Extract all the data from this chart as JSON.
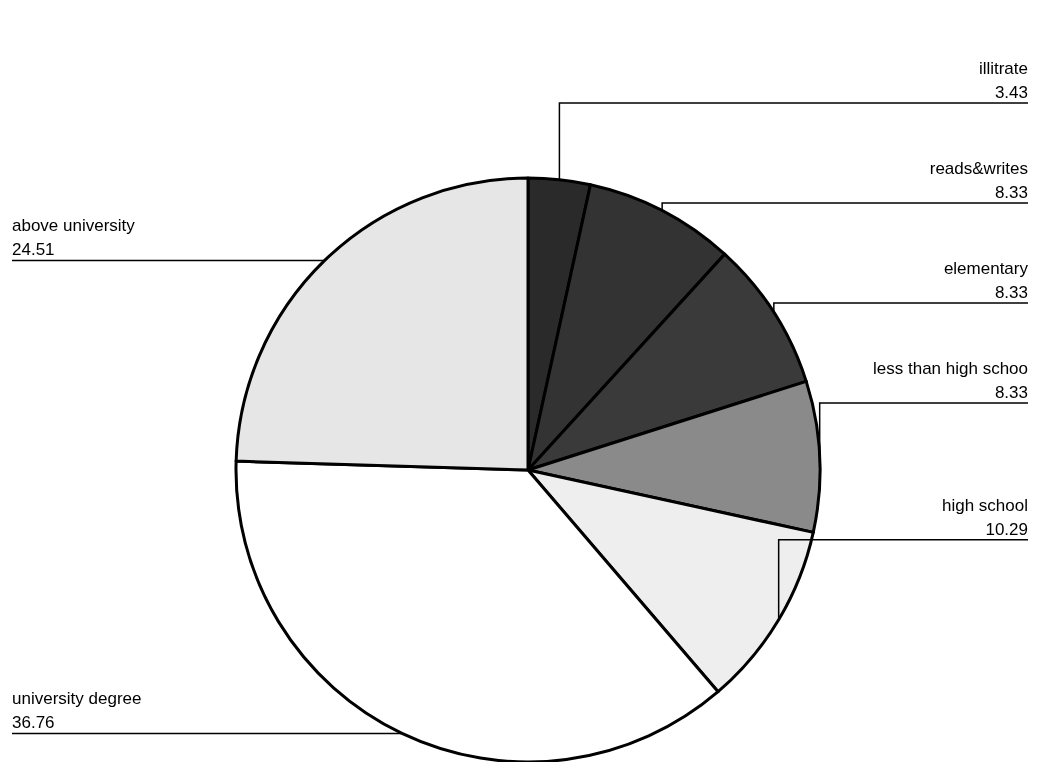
{
  "chart_data": {
    "type": "pie",
    "categories": [
      "illitrate",
      "reads&writes",
      "elementary",
      "less than high schoo",
      "high school",
      "university degree",
      "above university"
    ],
    "values": [
      3.43,
      8.33,
      8.33,
      8.33,
      10.29,
      36.76,
      24.51
    ],
    "colors": [
      "#2a2a2a",
      "#333333",
      "#3a3a3a",
      "#8a8a8a",
      "#eeeeee",
      "#ffffff",
      "#e6e6e6"
    ],
    "data_labels": true
  }
}
